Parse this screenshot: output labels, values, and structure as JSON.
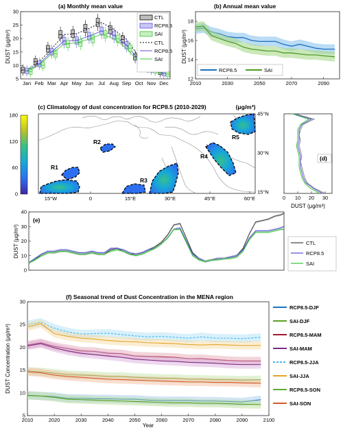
{
  "chart_data": [
    {
      "panel": "a",
      "type": "box",
      "title": "(a) Monthly mean value",
      "ylabel": "DUST (μg/m³)",
      "categories": [
        "Jan",
        "Feb",
        "Mar",
        "Apr",
        "May",
        "Jun",
        "Jul",
        "Aug",
        "Sep",
        "Oct",
        "Nov",
        "Dec"
      ],
      "ylim": [
        5,
        30
      ],
      "yticks": [
        5,
        10,
        15,
        20,
        25,
        30
      ],
      "series": [
        {
          "name": "CTL",
          "color": "#000000",
          "box_fill": "#bdbdbd",
          "values": [
            8.3,
            11.4,
            16.2,
            21.5,
            21.8,
            23.8,
            26.0,
            23.3,
            19.7,
            13.2,
            9.3,
            7.6
          ]
        },
        {
          "name": "RCP8.5",
          "color": "#5b52d8",
          "box_fill": "#c8c6f4",
          "values": [
            8.0,
            10.6,
            15.1,
            19.1,
            19.3,
            20.9,
            22.8,
            21.2,
            17.5,
            12.1,
            8.5,
            7.1
          ]
        },
        {
          "name": "SAI",
          "color": "#3ac43a",
          "box_fill": "#c6f0c0",
          "values": [
            7.7,
            10.1,
            14.3,
            18.0,
            18.4,
            19.8,
            21.6,
            19.9,
            16.4,
            11.3,
            8.1,
            6.8
          ]
        }
      ],
      "legend": [
        "CTL",
        "RCP8.5",
        "SAI",
        "CTL",
        "RCP8.5",
        "SAI"
      ],
      "legend_position": "top-right"
    },
    {
      "panel": "b",
      "type": "line",
      "title": "(b) Annual mean value",
      "ylabel": "DUST (μg/m³)",
      "xlim": [
        2010,
        2100
      ],
      "xticks": [
        2010,
        2030,
        2050,
        2070,
        2090
      ],
      "ylim": [
        12,
        19
      ],
      "yticks": [
        12,
        14,
        16,
        18
      ],
      "x": [
        2010,
        2015,
        2020,
        2025,
        2030,
        2035,
        2040,
        2045,
        2050,
        2055,
        2060,
        2065,
        2070,
        2075,
        2080,
        2085,
        2090,
        2097
      ],
      "series": [
        {
          "name": "RCP8.5",
          "color": "#1a6fbf",
          "band": "#8cc4ee",
          "values": [
            17.2,
            17.3,
            16.9,
            16.7,
            16.4,
            16.3,
            16.3,
            16.0,
            15.9,
            15.9,
            15.9,
            15.6,
            15.4,
            15.6,
            15.4,
            15.2,
            15.1,
            15.1
          ]
        },
        {
          "name": "SAI",
          "color": "#4c9a2a",
          "band": "#a9d88b",
          "values": [
            17.4,
            17.5,
            16.5,
            16.2,
            15.9,
            15.7,
            15.3,
            15.1,
            15.0,
            14.9,
            14.9,
            14.7,
            14.7,
            14.6,
            14.5,
            14.5,
            14.4,
            14.3
          ]
        }
      ],
      "legend_position": "bottom"
    },
    {
      "panel": "c",
      "type": "heatmap",
      "title": "(c) Climatology of dust concentration for RCP8.5 (2010-2029)",
      "unit": "(μg/m³)",
      "colorbar_ticks": [
        0,
        60,
        120,
        180
      ],
      "xticks": [
        "15°W",
        "0",
        "15°E",
        "30°E",
        "45°E",
        "60°E"
      ],
      "yticks": [
        "15°N",
        "30°N",
        "45°N"
      ],
      "regions": [
        "R1",
        "R2",
        "R3",
        "R4",
        "R5"
      ]
    },
    {
      "panel": "d",
      "type": "line",
      "title": "(d)",
      "xlabel": "DUST (μg/m³)",
      "xticks": [
        0,
        10,
        20,
        30
      ],
      "xlim": [
        0,
        35
      ],
      "latitudes": [
        45,
        43,
        41,
        39,
        37,
        35,
        33,
        31,
        29,
        27,
        25,
        23,
        21,
        19,
        17,
        15
      ],
      "series": [
        {
          "name": "CTL",
          "color": "#888888",
          "values": [
            8,
            22,
            14,
            12,
            11,
            12,
            11,
            12,
            13,
            12,
            13,
            14,
            15,
            17,
            22,
            30
          ]
        },
        {
          "name": "RCP8.5",
          "color": "#5b52d8",
          "values": [
            7,
            20,
            13,
            11,
            11,
            11,
            10,
            11,
            12,
            12,
            12,
            13,
            14,
            16,
            21,
            28
          ]
        },
        {
          "name": "SAI",
          "color": "#3ac43a",
          "values": [
            6,
            18,
            12,
            10,
            10,
            10,
            9,
            10,
            11,
            11,
            11,
            12,
            13,
            15,
            19,
            26
          ]
        }
      ]
    },
    {
      "panel": "e",
      "type": "line",
      "title": "(e)",
      "ylabel": "DUST (μg/m³)",
      "ylim": [
        0,
        40
      ],
      "yticks": [
        0,
        10,
        20,
        30,
        40
      ],
      "xlim": [
        -18,
        63
      ],
      "series": [
        {
          "name": "CTL",
          "color": "#444444",
          "x": [
            -18,
            -16,
            -14,
            -12,
            -10,
            -8,
            -6,
            -4,
            -2,
            0,
            2,
            4,
            6,
            8,
            10,
            12,
            14,
            16,
            18,
            20,
            22,
            24,
            26,
            28,
            30,
            32,
            34,
            36,
            38,
            40,
            42,
            44,
            46,
            48,
            50,
            52,
            54,
            56,
            58,
            60,
            62,
            63
          ],
          "values": [
            5,
            8,
            10,
            12,
            12,
            13,
            13,
            12,
            11,
            11,
            12,
            11,
            11,
            14,
            15,
            13,
            11,
            11,
            12,
            14,
            16,
            19,
            24,
            31,
            32,
            22,
            12,
            8,
            6,
            7,
            8,
            8,
            9,
            10,
            15,
            25,
            33,
            34,
            35,
            37,
            38,
            39
          ]
        },
        {
          "name": "RCP8.5",
          "color": "#5b52d8",
          "x": [
            -18,
            -16,
            -14,
            -12,
            -10,
            -8,
            -6,
            -4,
            -2,
            0,
            2,
            4,
            6,
            8,
            10,
            12,
            14,
            16,
            18,
            20,
            22,
            24,
            26,
            28,
            30,
            32,
            34,
            36,
            38,
            40,
            42,
            44,
            46,
            48,
            50,
            52,
            54,
            56,
            58,
            60,
            62,
            63
          ],
          "values": [
            5,
            8,
            11,
            13,
            13,
            14,
            14,
            13,
            12,
            12,
            13,
            12,
            12,
            15,
            15,
            14,
            12,
            11,
            12,
            14,
            15,
            18,
            22,
            28,
            29,
            20,
            11,
            8,
            6,
            7,
            8,
            8,
            9,
            10,
            14,
            22,
            27,
            27,
            27,
            28,
            29,
            30
          ]
        },
        {
          "name": "SAI",
          "color": "#3ac43a",
          "x": [
            -18,
            -16,
            -14,
            -12,
            -10,
            -8,
            -6,
            -4,
            -2,
            0,
            2,
            4,
            6,
            8,
            10,
            12,
            14,
            16,
            18,
            20,
            22,
            24,
            26,
            28,
            30,
            32,
            34,
            36,
            38,
            40,
            42,
            44,
            46,
            48,
            50,
            52,
            54,
            56,
            58,
            60,
            62,
            63
          ],
          "values": [
            5,
            7,
            10,
            12,
            12,
            13,
            13,
            12,
            11,
            11,
            12,
            11,
            11,
            13,
            14,
            13,
            11,
            10,
            11,
            13,
            15,
            18,
            22,
            28,
            28,
            19,
            10,
            7,
            6,
            7,
            7,
            8,
            8,
            9,
            13,
            21,
            26,
            26,
            26,
            27,
            28,
            28
          ]
        }
      ],
      "legend_position": "right"
    },
    {
      "panel": "f",
      "type": "line",
      "title": "(f) Seasonal trend of Dust Concentration in the MENA region",
      "xlabel": "Year",
      "ylabel": "DUST Concentration (μg/m³)",
      "xlim": [
        2010,
        2100
      ],
      "xticks": [
        2010,
        2020,
        2030,
        2040,
        2050,
        2060,
        2070,
        2080,
        2090,
        2100
      ],
      "ylim": [
        5,
        30
      ],
      "yticks": [
        5,
        10,
        15,
        20,
        25,
        30
      ],
      "x": [
        2010,
        2015,
        2020,
        2025,
        2030,
        2035,
        2040,
        2045,
        2050,
        2055,
        2060,
        2065,
        2070,
        2075,
        2080,
        2085,
        2090,
        2097
      ],
      "series": [
        {
          "name": "RCP8.5-DJF",
          "color": "#1a72c0",
          "band": "#9cc6ea",
          "dashed": false,
          "values": [
            9.5,
            9.3,
            9.2,
            8.8,
            8.8,
            8.7,
            8.7,
            8.6,
            8.6,
            8.4,
            8.3,
            8.3,
            8.3,
            8.2,
            8.2,
            8.1,
            8.0,
            8.5
          ]
        },
        {
          "name": "SAI-DJF",
          "color": "#5a9e1e",
          "band": "#b7dc95",
          "dashed": false,
          "values": [
            9.4,
            9.3,
            9.0,
            8.6,
            8.5,
            8.4,
            8.3,
            8.2,
            8.1,
            8.0,
            7.9,
            7.8,
            7.8,
            7.7,
            7.7,
            7.6,
            7.5,
            7.4
          ]
        },
        {
          "name": "RCP8.5-MAM",
          "color": "#a0172e",
          "band": "#e3a0ac",
          "dashed": false,
          "values": [
            20.5,
            21.0,
            20.2,
            19.7,
            19.2,
            19.1,
            18.7,
            18.6,
            18.1,
            18.0,
            17.9,
            17.8,
            17.5,
            17.5,
            17.3,
            17.1,
            17.0,
            17.0
          ]
        },
        {
          "name": "SAI-MAM",
          "color": "#7a2a82",
          "band": "#d6a8dc",
          "dashed": false,
          "values": [
            20.3,
            20.8,
            19.9,
            19.2,
            18.7,
            18.4,
            18.1,
            17.8,
            17.4,
            17.2,
            17.0,
            16.9,
            16.7,
            16.6,
            16.5,
            16.3,
            16.2,
            16.2
          ]
        },
        {
          "name": "RCP8.5-JJA",
          "color": "#3cb8ec",
          "band": "#a8ddf6",
          "dashed": true,
          "values": [
            25.0,
            25.5,
            24.2,
            23.4,
            22.9,
            23.0,
            23.1,
            22.8,
            22.5,
            22.3,
            22.4,
            22.2,
            22.0,
            22.3,
            22.0,
            22.0,
            21.9,
            22.2
          ]
        },
        {
          "name": "SAI-JJA",
          "color": "#e2a42a",
          "band": "#f6d89a",
          "dashed": false,
          "values": [
            24.5,
            25.2,
            23.0,
            22.4,
            22.0,
            21.8,
            21.5,
            21.3,
            21.2,
            21.0,
            20.9,
            20.8,
            20.6,
            20.5,
            20.6,
            20.5,
            20.4,
            20.4
          ]
        },
        {
          "name": "RCP8.5-SON",
          "color": "#5faa2c",
          "band": "#bfe0a0",
          "dashed": false,
          "values": [
            14.8,
            14.6,
            14.3,
            14.0,
            13.9,
            13.8,
            13.6,
            13.6,
            13.4,
            13.3,
            13.2,
            13.2,
            13.0,
            13.0,
            12.9,
            12.9,
            12.8,
            12.9
          ]
        },
        {
          "name": "SAI-SON",
          "color": "#d9582c",
          "band": "#f5b79c",
          "dashed": false,
          "values": [
            14.6,
            14.4,
            13.9,
            13.6,
            13.4,
            13.2,
            13.0,
            12.9,
            12.8,
            12.7,
            12.6,
            12.5,
            12.4,
            12.4,
            12.3,
            12.3,
            12.2,
            12.1
          ]
        }
      ],
      "legend_position": "right"
    }
  ]
}
